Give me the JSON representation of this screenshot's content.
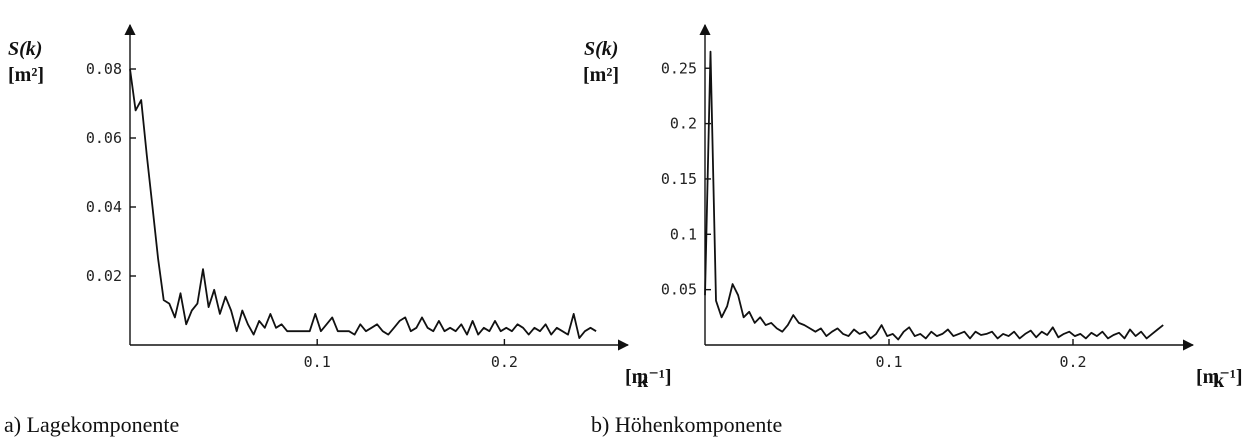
{
  "chart_data": [
    {
      "type": "line",
      "caption": "a)  Lagekomponente",
      "ylabel": "S(k)",
      "yunit": "[m²]",
      "xlabel": "k",
      "xunit": "[m⁻¹]",
      "xlim": [
        0,
        0.26
      ],
      "ylim": [
        0,
        0.083
      ],
      "x_ticks": [
        0.1,
        0.2
      ],
      "x_tick_labels": [
        "0.1",
        "0.2"
      ],
      "y_ticks": [
        0.02,
        0.04,
        0.06,
        0.08
      ],
      "y_tick_labels": [
        "0.02",
        "0.04",
        "0.06",
        "0.08"
      ],
      "series": [
        {
          "x": [
            0.0,
            0.003,
            0.006,
            0.009,
            0.012,
            0.015,
            0.018,
            0.021,
            0.024,
            0.027,
            0.03,
            0.033,
            0.036,
            0.039,
            0.042,
            0.045,
            0.048,
            0.051,
            0.054,
            0.057,
            0.06,
            0.063,
            0.066,
            0.069,
            0.072,
            0.075,
            0.078,
            0.081,
            0.084,
            0.087,
            0.09,
            0.093,
            0.096,
            0.099,
            0.102,
            0.105,
            0.108,
            0.111,
            0.114,
            0.117,
            0.12,
            0.123,
            0.126,
            0.129,
            0.132,
            0.135,
            0.138,
            0.141,
            0.144,
            0.147,
            0.15,
            0.153,
            0.156,
            0.159,
            0.162,
            0.165,
            0.168,
            0.171,
            0.174,
            0.177,
            0.18,
            0.183,
            0.186,
            0.189,
            0.192,
            0.195,
            0.198,
            0.201,
            0.204,
            0.207,
            0.21,
            0.213,
            0.216,
            0.219,
            0.222,
            0.225,
            0.228,
            0.231,
            0.234,
            0.237,
            0.24,
            0.243,
            0.246,
            0.249
          ],
          "y": [
            0.08,
            0.068,
            0.071,
            0.055,
            0.04,
            0.025,
            0.013,
            0.012,
            0.008,
            0.015,
            0.006,
            0.01,
            0.012,
            0.022,
            0.011,
            0.016,
            0.009,
            0.014,
            0.01,
            0.004,
            0.01,
            0.006,
            0.003,
            0.007,
            0.005,
            0.009,
            0.005,
            0.006,
            0.004,
            0.004,
            0.004,
            0.004,
            0.004,
            0.009,
            0.004,
            0.006,
            0.008,
            0.004,
            0.004,
            0.004,
            0.003,
            0.006,
            0.004,
            0.005,
            0.006,
            0.004,
            0.003,
            0.005,
            0.007,
            0.008,
            0.004,
            0.005,
            0.008,
            0.005,
            0.004,
            0.007,
            0.004,
            0.005,
            0.004,
            0.006,
            0.003,
            0.007,
            0.003,
            0.005,
            0.004,
            0.007,
            0.004,
            0.005,
            0.004,
            0.006,
            0.005,
            0.003,
            0.005,
            0.004,
            0.006,
            0.003,
            0.005,
            0.004,
            0.003,
            0.009,
            0.002,
            0.004,
            0.005,
            0.004
          ]
        }
      ]
    },
    {
      "type": "line",
      "caption": "b)  Höhenkomponente",
      "ylabel": "S(k)",
      "yunit": "[m²]",
      "xlabel": "k",
      "xunit": "[m⁻¹]",
      "xlim": [
        0,
        0.26
      ],
      "ylim": [
        0,
        0.28
      ],
      "x_ticks": [
        0.1,
        0.2
      ],
      "x_tick_labels": [
        "0.1",
        "0.2"
      ],
      "y_ticks": [
        0.05,
        0.1,
        0.15,
        0.2,
        0.25
      ],
      "y_tick_labels": [
        "0.05",
        "0.1",
        "0.15",
        "0.2",
        "0.25"
      ],
      "series": [
        {
          "x": [
            0.0,
            0.003,
            0.006,
            0.009,
            0.012,
            0.015,
            0.018,
            0.021,
            0.024,
            0.027,
            0.03,
            0.033,
            0.036,
            0.039,
            0.042,
            0.045,
            0.048,
            0.051,
            0.054,
            0.057,
            0.06,
            0.063,
            0.066,
            0.069,
            0.072,
            0.075,
            0.078,
            0.081,
            0.084,
            0.087,
            0.09,
            0.093,
            0.096,
            0.099,
            0.102,
            0.105,
            0.108,
            0.111,
            0.114,
            0.117,
            0.12,
            0.123,
            0.126,
            0.129,
            0.132,
            0.135,
            0.138,
            0.141,
            0.144,
            0.147,
            0.15,
            0.153,
            0.156,
            0.159,
            0.162,
            0.165,
            0.168,
            0.171,
            0.174,
            0.177,
            0.18,
            0.183,
            0.186,
            0.189,
            0.192,
            0.195,
            0.198,
            0.201,
            0.204,
            0.207,
            0.21,
            0.213,
            0.216,
            0.219,
            0.222,
            0.225,
            0.228,
            0.231,
            0.234,
            0.237,
            0.24,
            0.243,
            0.246,
            0.249
          ],
          "y": [
            0.045,
            0.265,
            0.04,
            0.025,
            0.035,
            0.055,
            0.045,
            0.025,
            0.03,
            0.02,
            0.025,
            0.018,
            0.02,
            0.015,
            0.012,
            0.018,
            0.027,
            0.02,
            0.018,
            0.015,
            0.012,
            0.015,
            0.008,
            0.012,
            0.015,
            0.01,
            0.008,
            0.014,
            0.01,
            0.012,
            0.006,
            0.01,
            0.018,
            0.008,
            0.01,
            0.005,
            0.012,
            0.016,
            0.008,
            0.01,
            0.006,
            0.012,
            0.008,
            0.01,
            0.014,
            0.008,
            0.01,
            0.012,
            0.006,
            0.012,
            0.009,
            0.01,
            0.012,
            0.006,
            0.01,
            0.008,
            0.012,
            0.006,
            0.01,
            0.013,
            0.007,
            0.012,
            0.009,
            0.016,
            0.007,
            0.01,
            0.012,
            0.008,
            0.01,
            0.006,
            0.011,
            0.008,
            0.012,
            0.006,
            0.009,
            0.011,
            0.006,
            0.014,
            0.008,
            0.012,
            0.006,
            0.01,
            0.014,
            0.018
          ]
        }
      ]
    }
  ]
}
